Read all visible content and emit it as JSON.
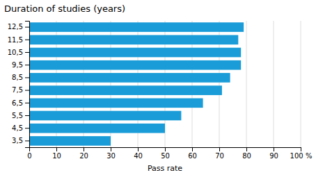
{
  "chart_data": {
    "type": "bar",
    "orientation": "horizontal",
    "title": "Duration of studies (years)",
    "xlabel": "Pass rate",
    "categories": [
      "3,5",
      "4,5",
      "5,5",
      "6,5",
      "7,5",
      "8,5",
      "9,5",
      "10,5",
      "11,5",
      "12,5"
    ],
    "values": [
      30,
      50,
      56,
      64,
      71,
      74,
      78,
      78,
      77,
      79
    ],
    "color": "#1a9cd8",
    "xlim": [
      0,
      100
    ],
    "xticks": [
      0,
      10,
      20,
      30,
      40,
      50,
      60,
      70,
      80,
      90,
      {
        "value": 100,
        "label": "100 %"
      }
    ],
    "grid": true
  }
}
